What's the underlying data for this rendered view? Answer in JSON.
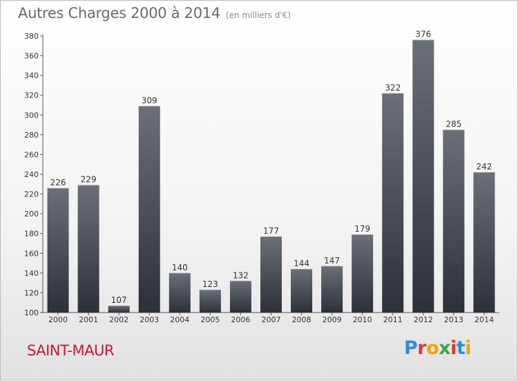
{
  "header": {
    "title": "Autres Charges 2000 à 2014",
    "subtitle": "(en milliers d'€)"
  },
  "footer": {
    "city": "SAINT-MAUR",
    "logo_text": "Proxiti"
  },
  "colors": {
    "bar_top": "#6b6f76",
    "bar_bottom": "#2c3038",
    "city": "#c4163a"
  },
  "chart_data": {
    "type": "bar",
    "title": "Autres Charges 2000 à 2014",
    "subtitle": "(en milliers d'€)",
    "xlabel": "",
    "ylabel": "",
    "categories": [
      "2000",
      "2001",
      "2002",
      "2003",
      "2004",
      "2005",
      "2006",
      "2007",
      "2008",
      "2009",
      "2010",
      "2011",
      "2012",
      "2013",
      "2014"
    ],
    "values": [
      226,
      229,
      107,
      309,
      140,
      123,
      132,
      177,
      144,
      147,
      179,
      322,
      376,
      285,
      242
    ],
    "ylim": [
      100,
      380
    ],
    "yticks": [
      100,
      120,
      140,
      160,
      180,
      200,
      220,
      240,
      260,
      280,
      300,
      320,
      340,
      360,
      380
    ],
    "grid": false,
    "legend": "none"
  }
}
